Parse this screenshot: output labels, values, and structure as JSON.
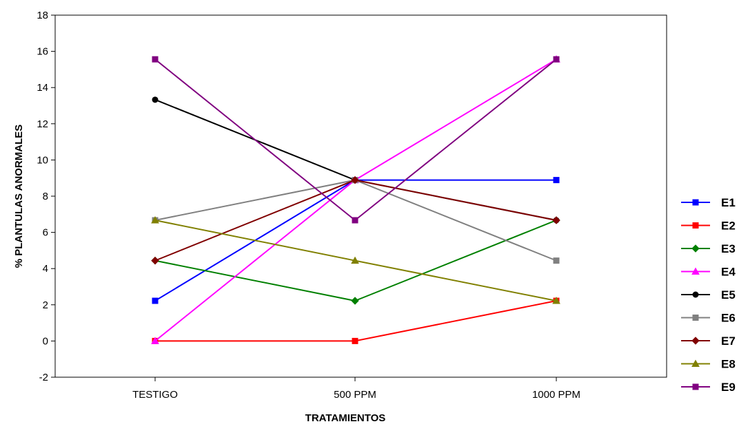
{
  "chart_data": {
    "type": "line",
    "categories": [
      "TESTIGO",
      "500 PPM",
      "1000 PPM"
    ],
    "xlabel": "TRATAMIENTOS",
    "ylabel": "% PLANTULAS ANORMALES",
    "ylim": [
      -2,
      18
    ],
    "yticks": [
      -2,
      0,
      2,
      4,
      6,
      8,
      10,
      12,
      14,
      16,
      18
    ],
    "ytick_labels": [
      "-2",
      "0",
      "2",
      "4",
      "6",
      "8",
      "10",
      "12",
      "14",
      "16",
      "18"
    ],
    "grid": false,
    "legend_position": "right",
    "series": [
      {
        "name": "E1",
        "color": "#0000ff",
        "marker": "square",
        "values": [
          2.22,
          8.89,
          8.89
        ]
      },
      {
        "name": "E2",
        "color": "#ff0000",
        "marker": "square",
        "values": [
          0,
          0,
          2.22
        ]
      },
      {
        "name": "E3",
        "color": "#008000",
        "marker": "diamond",
        "values": [
          4.44,
          2.22,
          6.67
        ]
      },
      {
        "name": "E4",
        "color": "#ff00ff",
        "marker": "triangle",
        "values": [
          0,
          8.89,
          15.56
        ]
      },
      {
        "name": "E5",
        "color": "#000000",
        "marker": "circle",
        "values": [
          13.33,
          8.89,
          6.67
        ]
      },
      {
        "name": "E6",
        "color": "#808080",
        "marker": "square",
        "values": [
          6.67,
          8.89,
          4.44
        ]
      },
      {
        "name": "E7",
        "color": "#800000",
        "marker": "diamond",
        "values": [
          4.44,
          8.89,
          6.67
        ]
      },
      {
        "name": "E8",
        "color": "#808000",
        "marker": "triangle",
        "values": [
          6.67,
          4.44,
          2.22
        ]
      },
      {
        "name": "E9",
        "color": "#800080",
        "marker": "square",
        "values": [
          15.56,
          6.67,
          15.56
        ]
      }
    ]
  }
}
